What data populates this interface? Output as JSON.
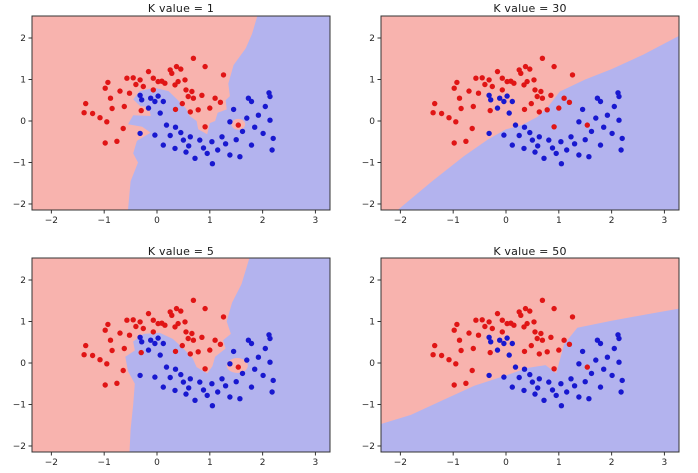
{
  "figure": {
    "background": "#ffffff",
    "colors": {
      "region_red": "#f8b3ae",
      "region_blue": "#b3b3ee",
      "point_red": "#e01515",
      "point_blue": "#1818cf",
      "spine": "#333333",
      "tick_text": "#262626",
      "title_text": "#1a1a1a"
    }
  },
  "chart_data": {
    "type": "scatter",
    "description": "2x2 grid of KNN decision-boundary plots on a two-moons dataset for different K values; light red / light blue shaded class regions with red and blue scatter points (same data in all four subplots).",
    "xlim": [
      -2.367,
      3.276
    ],
    "ylim": [
      -2.145,
      2.53
    ],
    "xticks": [
      -2,
      -1,
      0,
      1,
      2,
      3
    ],
    "yticks": [
      -2,
      -1,
      0,
      1,
      2
    ],
    "xtick_labels": [
      "−2",
      "−1",
      "0",
      "1",
      "2",
      "3"
    ],
    "ytick_labels": [
      "−2",
      "−1",
      "0",
      "1",
      "2"
    ],
    "grid": false,
    "legend": null,
    "classes": [
      {
        "name": "class-red",
        "color_key": "point_red",
        "points": [
          [
            -1.35,
            0.42
          ],
          [
            -1.38,
            0.2
          ],
          [
            -1.22,
            0.18
          ],
          [
            -1.08,
            0.08
          ],
          [
            -0.95,
            -0.02
          ],
          [
            -0.93,
            0.93
          ],
          [
            -0.98,
            0.79
          ],
          [
            -0.88,
            0.55
          ],
          [
            -0.85,
            0.3
          ],
          [
            -0.76,
            -0.49
          ],
          [
            -0.98,
            -0.53
          ],
          [
            -0.7,
            0.72
          ],
          [
            -0.64,
            -0.18
          ],
          [
            -0.62,
            0.35
          ],
          [
            -0.57,
            1.03
          ],
          [
            -0.52,
            0.67
          ],
          [
            -0.45,
            1.04
          ],
          [
            -0.4,
            0.88
          ],
          [
            -0.32,
            0.99
          ],
          [
            -0.3,
            0.25
          ],
          [
            -0.26,
            0.83
          ],
          [
            -0.16,
            1.19
          ],
          [
            -0.07,
            1.03
          ],
          [
            -0.07,
            0.75
          ],
          [
            0.02,
            0.95
          ],
          [
            0.09,
            0.96
          ],
          [
            0.15,
            0.91
          ],
          [
            0.25,
            1.23
          ],
          [
            0.28,
            1.15
          ],
          [
            0.34,
            0.87
          ],
          [
            0.37,
            1.31
          ],
          [
            0.4,
            0.95
          ],
          [
            0.45,
            1.25
          ],
          [
            0.53,
            0.99
          ],
          [
            0.55,
            0.75
          ],
          [
            0.59,
            0.59
          ],
          [
            0.63,
            0.22
          ],
          [
            0.66,
            0.71
          ],
          [
            0.69,
            1.51
          ],
          [
            0.69,
            0.55
          ],
          [
            0.78,
            0.27
          ],
          [
            0.85,
            0.62
          ],
          [
            0.91,
            1.31
          ],
          [
            0.91,
            -0.14
          ],
          [
            1.0,
            0.31
          ],
          [
            1.1,
            0.55
          ],
          [
            1.26,
            1.11
          ],
          [
            1.2,
            0.45
          ],
          [
            1.54,
            -0.1
          ],
          [
            0.48,
            0.42
          ],
          [
            0.35,
            0.28
          ]
        ]
      },
      {
        "name": "class-blue",
        "color_key": "point_blue",
        "points": [
          [
            -0.32,
            0.62
          ],
          [
            -0.29,
            0.51
          ],
          [
            -0.16,
            0.31
          ],
          [
            -0.04,
            0.47
          ],
          [
            0.12,
            0.47
          ],
          [
            0.06,
            0.19
          ],
          [
            0.18,
            -0.1
          ],
          [
            -0.04,
            -0.34
          ],
          [
            -0.32,
            -0.3
          ],
          [
            0.12,
            -0.58
          ],
          [
            0.34,
            -0.66
          ],
          [
            0.25,
            -0.35
          ],
          [
            0.5,
            -0.46
          ],
          [
            0.63,
            -0.38
          ],
          [
            0.72,
            -0.9
          ],
          [
            0.81,
            -0.46
          ],
          [
            0.55,
            -0.75
          ],
          [
            0.95,
            -0.78
          ],
          [
            1.04,
            -0.5
          ],
          [
            1.05,
            -1.03
          ],
          [
            1.23,
            -0.38
          ],
          [
            1.38,
            -0.82
          ],
          [
            1.57,
            -0.86
          ],
          [
            1.38,
            -0.02
          ],
          [
            1.45,
            0.28
          ],
          [
            1.7,
            0.07
          ],
          [
            1.79,
            -0.58
          ],
          [
            1.92,
            0.14
          ],
          [
            2.01,
            -0.3
          ],
          [
            2.14,
            0.02
          ],
          [
            2.14,
            0.59
          ],
          [
            1.73,
            0.55
          ],
          [
            1.79,
            0.47
          ],
          [
            2.2,
            -0.42
          ],
          [
            2.18,
            -0.7
          ],
          [
            2.12,
            0.68
          ],
          [
            1.62,
            -0.25
          ],
          [
            0.45,
            -0.28
          ],
          [
            0.35,
            -0.15
          ],
          [
            0.88,
            -0.65
          ],
          [
            1.15,
            -0.7
          ],
          [
            1.3,
            -0.55
          ],
          [
            0.6,
            -0.6
          ],
          [
            1.5,
            -0.45
          ],
          [
            1.85,
            -0.15
          ],
          [
            2.05,
            0.35
          ],
          [
            0.02,
            0.6
          ],
          [
            -0.12,
            0.55
          ]
        ]
      }
    ],
    "subplots": [
      {
        "title": "K value = 1",
        "k": 1,
        "blue_region": [
          [
            1.9,
            2.53
          ],
          [
            1.8,
            2.1
          ],
          [
            1.68,
            1.75
          ],
          [
            1.45,
            1.35
          ],
          [
            1.35,
            0.9
          ],
          [
            1.38,
            0.6
          ],
          [
            1.3,
            0.5
          ],
          [
            1.32,
            0.28
          ],
          [
            1.15,
            0.2
          ],
          [
            1.1,
            0.0
          ],
          [
            1.0,
            -0.05
          ],
          [
            0.95,
            -0.32
          ],
          [
            0.78,
            -0.2
          ],
          [
            0.75,
            0.0
          ],
          [
            0.62,
            0.12
          ],
          [
            0.55,
            0.3
          ],
          [
            0.38,
            0.52
          ],
          [
            0.22,
            0.72
          ],
          [
            -0.05,
            0.8
          ],
          [
            -0.33,
            0.72
          ],
          [
            -0.45,
            0.52
          ],
          [
            -0.32,
            0.36
          ],
          [
            -0.15,
            0.33
          ],
          [
            -0.12,
            0.12
          ],
          [
            -0.45,
            0.14
          ],
          [
            -0.55,
            -0.08
          ],
          [
            -0.28,
            -0.14
          ],
          [
            -0.12,
            -0.28
          ],
          [
            -0.38,
            -0.48
          ],
          [
            -0.45,
            -0.78
          ],
          [
            -0.36,
            -1.0
          ],
          [
            -0.5,
            -1.45
          ],
          [
            -0.55,
            -2.145
          ],
          [
            3.276,
            -2.145
          ],
          [
            3.276,
            2.53
          ]
        ],
        "red_islands": [
          {
            "cx": 1.54,
            "cy": -0.08,
            "rx": 0.13,
            "ry": 0.13
          }
        ]
      },
      {
        "title": "K value = 30",
        "k": 30,
        "blue_region": [
          [
            3.276,
            2.05
          ],
          [
            2.6,
            1.6
          ],
          [
            2.0,
            1.25
          ],
          [
            1.5,
            1.0
          ],
          [
            1.02,
            0.71
          ],
          [
            0.8,
            0.35
          ],
          [
            0.6,
            0.1
          ],
          [
            0.3,
            -0.1
          ],
          [
            0.0,
            -0.2
          ],
          [
            -0.35,
            -0.45
          ],
          [
            -0.8,
            -0.85
          ],
          [
            -1.4,
            -1.45
          ],
          [
            -2.05,
            -2.145
          ],
          [
            3.276,
            -2.145
          ]
        ],
        "red_islands": []
      },
      {
        "title": "K value = 5",
        "k": 5,
        "blue_region": [
          [
            1.75,
            2.53
          ],
          [
            1.6,
            1.9
          ],
          [
            1.42,
            1.45
          ],
          [
            1.32,
            1.0
          ],
          [
            1.4,
            0.7
          ],
          [
            1.25,
            0.55
          ],
          [
            1.3,
            0.35
          ],
          [
            1.1,
            0.15
          ],
          [
            1.05,
            -0.08
          ],
          [
            0.95,
            -0.25
          ],
          [
            0.75,
            -0.1
          ],
          [
            0.68,
            0.1
          ],
          [
            0.5,
            0.35
          ],
          [
            0.3,
            0.58
          ],
          [
            0.05,
            0.73
          ],
          [
            -0.25,
            0.7
          ],
          [
            -0.45,
            0.52
          ],
          [
            -0.42,
            0.3
          ],
          [
            -0.6,
            0.15
          ],
          [
            -0.55,
            -0.2
          ],
          [
            -0.42,
            -0.5
          ],
          [
            -0.45,
            -1.0
          ],
          [
            -0.5,
            -1.6
          ],
          [
            -0.52,
            -2.145
          ],
          [
            3.276,
            -2.145
          ],
          [
            3.276,
            2.53
          ]
        ],
        "red_islands": [
          {
            "cx": 1.52,
            "cy": -0.06,
            "rx": 0.2,
            "ry": 0.18
          }
        ]
      },
      {
        "title": "K value = 50",
        "k": 50,
        "blue_region": [
          [
            3.276,
            1.31
          ],
          [
            2.7,
            1.18
          ],
          [
            2.0,
            1.02
          ],
          [
            1.35,
            0.85
          ],
          [
            1.1,
            0.45
          ],
          [
            0.95,
            -0.25
          ],
          [
            0.75,
            -0.05
          ],
          [
            0.4,
            -0.12
          ],
          [
            0.0,
            -0.3
          ],
          [
            -0.6,
            -0.55
          ],
          [
            -1.2,
            -0.9
          ],
          [
            -1.8,
            -1.25
          ],
          [
            -2.367,
            -1.47
          ],
          [
            -2.367,
            -2.145
          ],
          [
            3.276,
            -2.145
          ]
        ],
        "red_islands": []
      }
    ]
  }
}
